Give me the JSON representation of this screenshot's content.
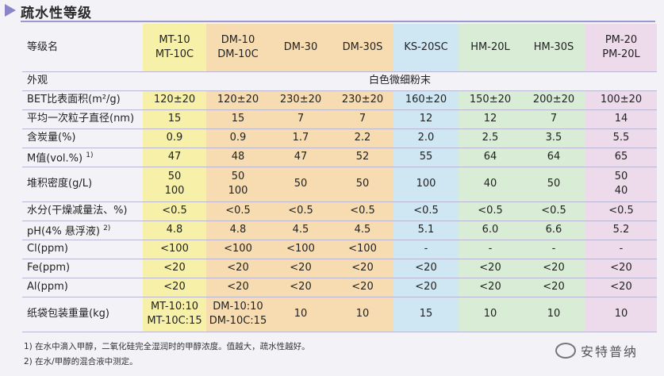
{
  "title": "疏水性等级",
  "header": {
    "label": "等级名",
    "grades": [
      [
        "MT-10",
        "MT-10C"
      ],
      [
        "DM-10",
        "DM-10C"
      ],
      [
        "DM-30",
        ""
      ],
      [
        "DM-30S",
        ""
      ],
      [
        "KS-20SC",
        ""
      ],
      [
        "HM-20L",
        ""
      ],
      [
        "HM-30S",
        ""
      ],
      [
        "PM-20",
        "PM-20L"
      ]
    ]
  },
  "appearance": {
    "label": "外观",
    "value": "白色微细粉末"
  },
  "rows": [
    {
      "label": "BET比表面积(m²/g)",
      "sup": "",
      "values": [
        [
          "120±20"
        ],
        [
          "120±20"
        ],
        [
          "230±20"
        ],
        [
          "230±20"
        ],
        [
          "160±20"
        ],
        [
          "150±20"
        ],
        [
          "200±20"
        ],
        [
          "100±20"
        ]
      ]
    },
    {
      "label": "平均一次粒子直径(nm)",
      "sup": "",
      "values": [
        [
          "15"
        ],
        [
          "15"
        ],
        [
          "7"
        ],
        [
          "7"
        ],
        [
          "12"
        ],
        [
          "12"
        ],
        [
          "7"
        ],
        [
          "14"
        ]
      ]
    },
    {
      "label": "含炭量(%)",
      "sup": "",
      "values": [
        [
          "0.9"
        ],
        [
          "0.9"
        ],
        [
          "1.7"
        ],
        [
          "2.2"
        ],
        [
          "2.0"
        ],
        [
          "2.5"
        ],
        [
          "3.5"
        ],
        [
          "5.5"
        ]
      ]
    },
    {
      "label": "M值(vol.%)",
      "sup": "1)",
      "values": [
        [
          "47"
        ],
        [
          "48"
        ],
        [
          "47"
        ],
        [
          "52"
        ],
        [
          "55"
        ],
        [
          "64"
        ],
        [
          "64"
        ],
        [
          "65"
        ]
      ]
    },
    {
      "label": "堆积密度(g/L)",
      "sup": "",
      "values": [
        [
          "50",
          "100"
        ],
        [
          "50",
          "100"
        ],
        [
          "50"
        ],
        [
          "50"
        ],
        [
          "100"
        ],
        [
          "40"
        ],
        [
          "50"
        ],
        [
          "50",
          "40"
        ]
      ]
    },
    {
      "label": "水分(干燥减量法、%)",
      "sup": "",
      "values": [
        [
          "<0.5"
        ],
        [
          "<0.5"
        ],
        [
          "<0.5"
        ],
        [
          "<0.5"
        ],
        [
          "<0.5"
        ],
        [
          "<0.5"
        ],
        [
          "<0.5"
        ],
        [
          "<0.5"
        ]
      ]
    },
    {
      "label": "pH(4% 悬浮液)",
      "sup": "2)",
      "values": [
        [
          "4.8"
        ],
        [
          "4.8"
        ],
        [
          "4.5"
        ],
        [
          "4.5"
        ],
        [
          "5.1"
        ],
        [
          "6.0"
        ],
        [
          "6.6"
        ],
        [
          "5.2"
        ]
      ]
    },
    {
      "label": "Cl(ppm)",
      "sup": "",
      "values": [
        [
          "<100"
        ],
        [
          "<100"
        ],
        [
          "<100"
        ],
        [
          "<100"
        ],
        [
          "-"
        ],
        [
          "-"
        ],
        [
          "-"
        ],
        [
          "-"
        ]
      ]
    },
    {
      "label": "Fe(ppm)",
      "sup": "",
      "values": [
        [
          "<20"
        ],
        [
          "<20"
        ],
        [
          "<20"
        ],
        [
          "<20"
        ],
        [
          "<20"
        ],
        [
          "<20"
        ],
        [
          "<20"
        ],
        [
          "<20"
        ]
      ]
    },
    {
      "label": "Al(ppm)",
      "sup": "",
      "values": [
        [
          "<20"
        ],
        [
          "<20"
        ],
        [
          "<20"
        ],
        [
          "<20"
        ],
        [
          "<20"
        ],
        [
          "<20"
        ],
        [
          "<20"
        ],
        [
          "<20"
        ]
      ]
    },
    {
      "label": "纸袋包装重量(kg)",
      "sup": "",
      "values": [
        [
          "MT-10:10",
          "MT-10C:15"
        ],
        [
          "DM-10:10",
          "DM-10C:15"
        ],
        [
          "10"
        ],
        [
          "10"
        ],
        [
          "15"
        ],
        [
          "10"
        ],
        [
          "10"
        ],
        [
          "10"
        ]
      ]
    }
  ],
  "notes": [
    "1) 在水中滴入甲醇，二氧化硅完全湿润时的甲醇浓度。值越大，疏水性越好。",
    "2) 在水/甲醇的混合液中测定。"
  ],
  "watermark": "安特普纳",
  "colors": {
    "accent": "#8a85c9",
    "col_yellow": "#f6f0a8",
    "col_orange": "#f7dcb1",
    "col_blue": "#cfe6f3",
    "col_green": "#d9ecd6",
    "col_pink": "#eddbeb"
  }
}
